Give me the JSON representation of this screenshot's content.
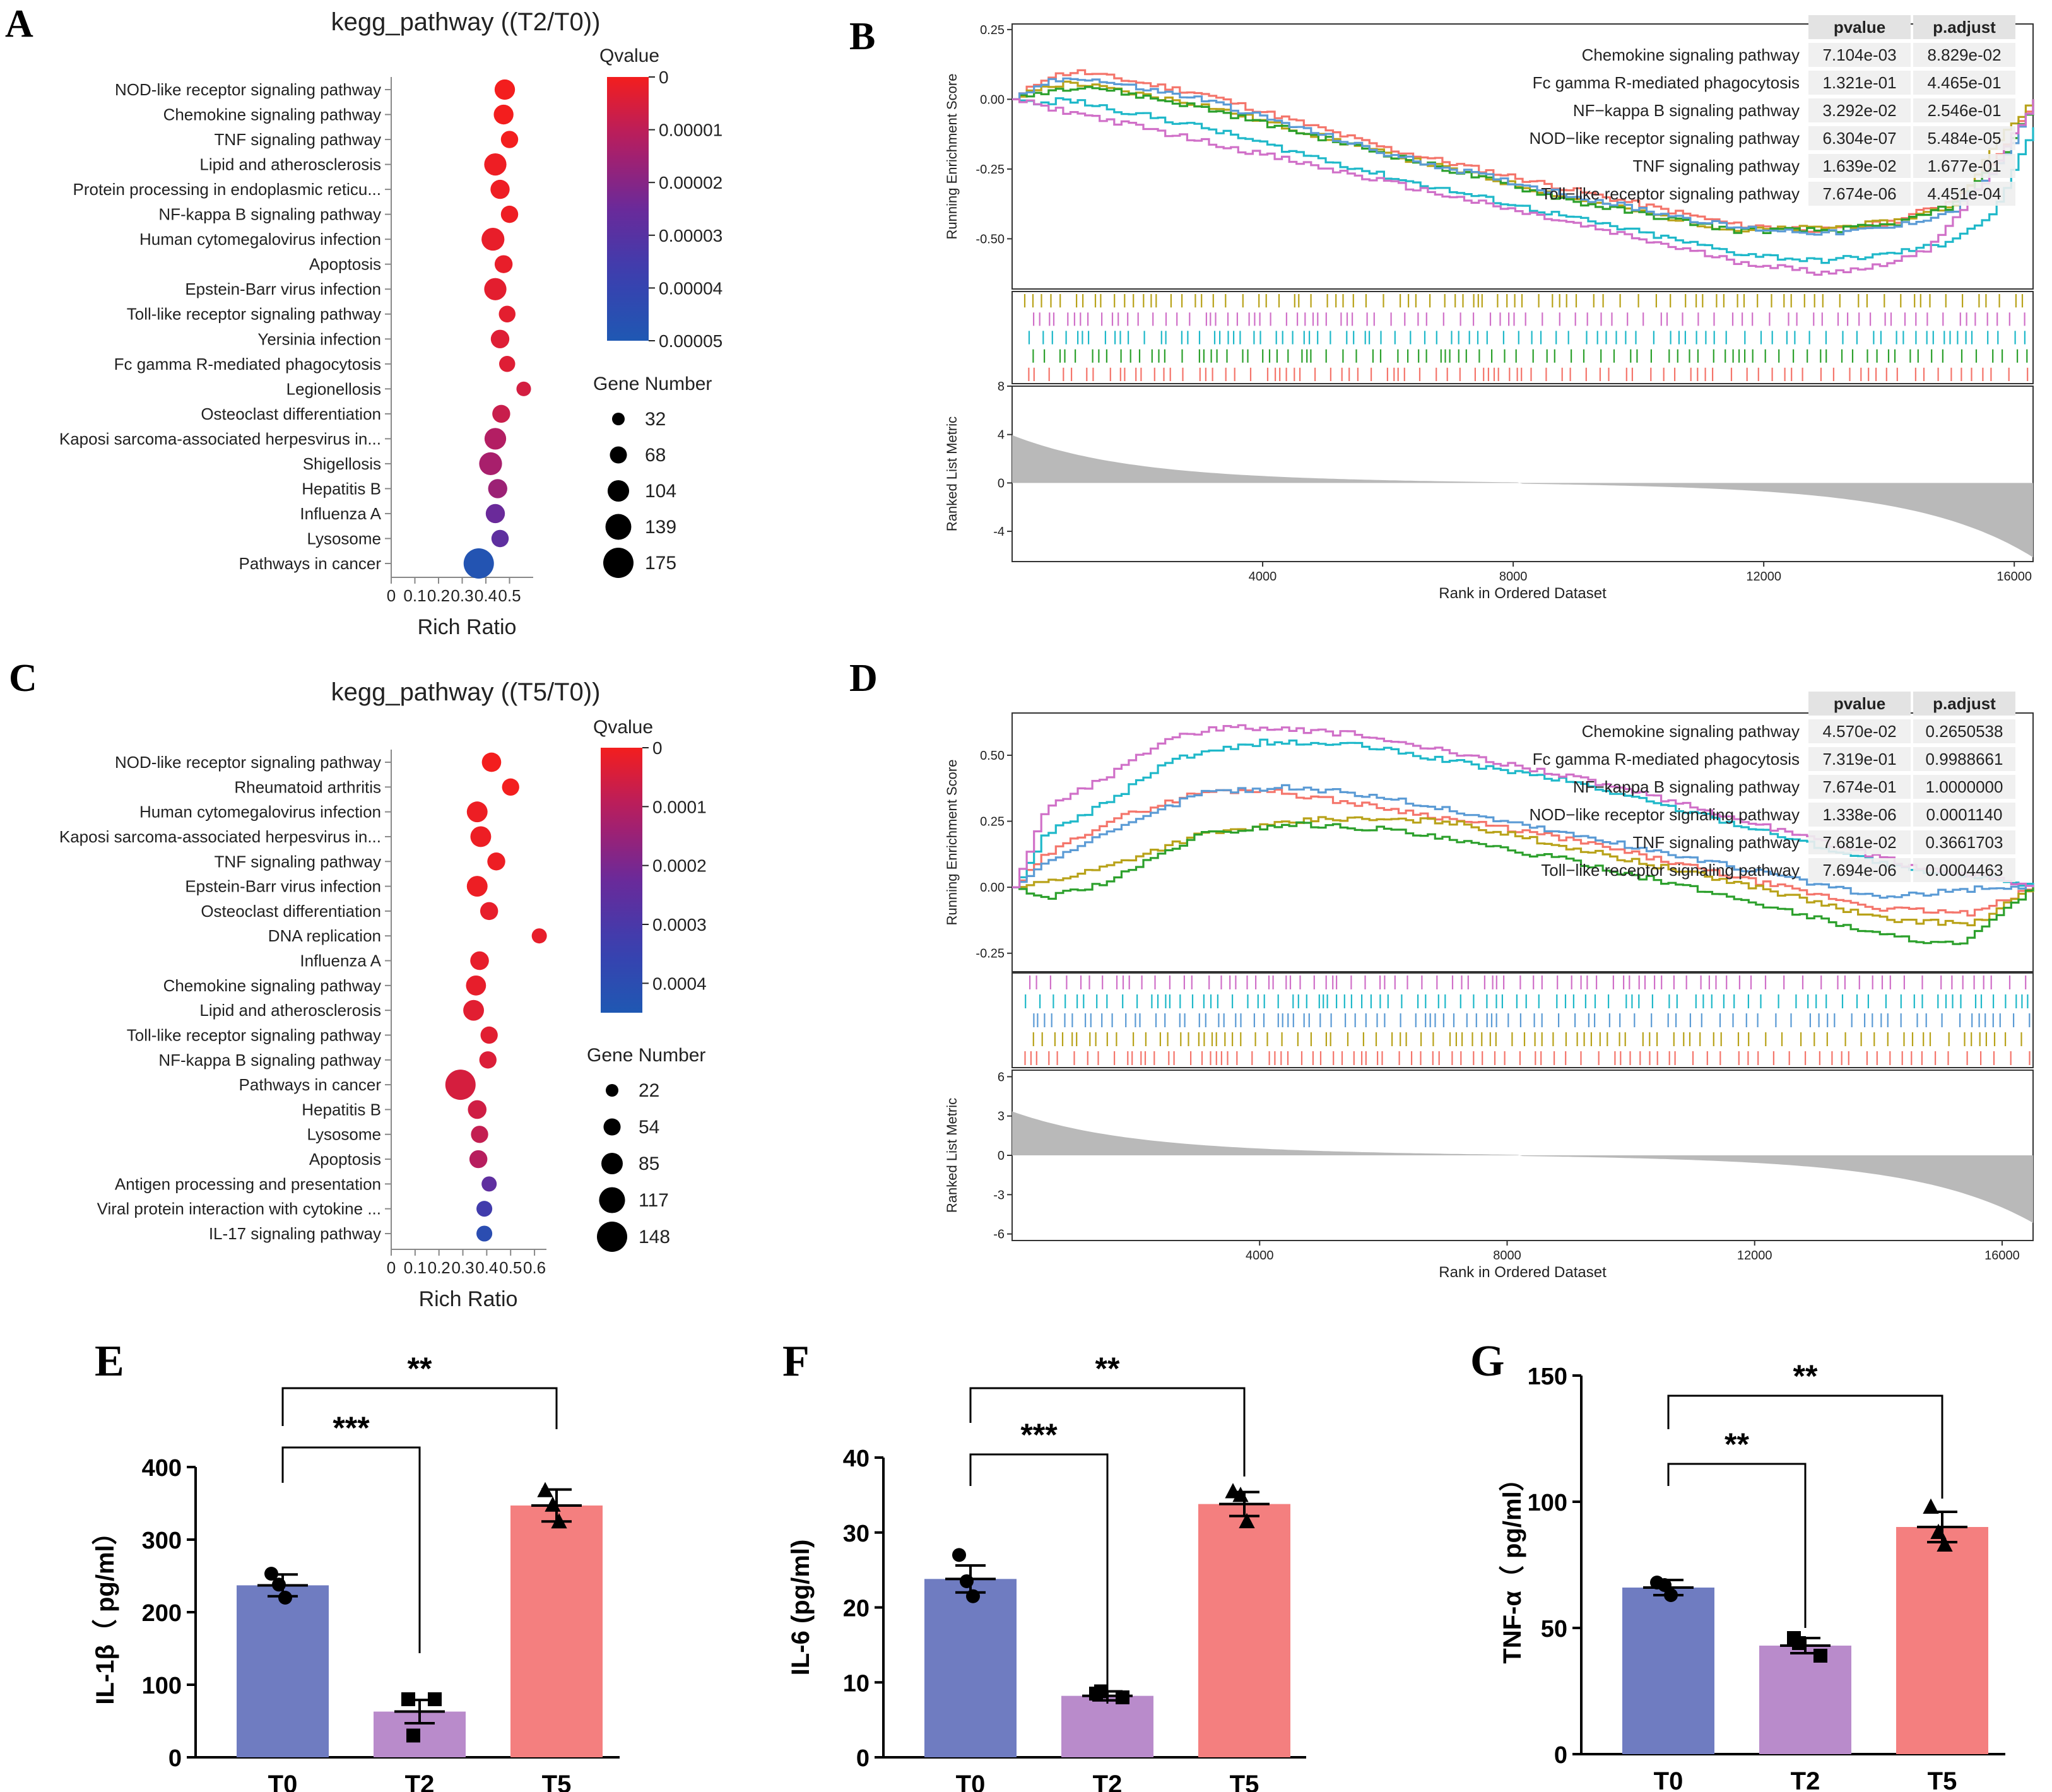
{
  "chart_data": [
    {
      "panel": "A",
      "type": "scatter",
      "title": "kegg_pathway ((T2/T0))",
      "xlabel": "Rich Ratio",
      "x_ticks": [
        "0",
        "0.1",
        "0.2",
        "0.3",
        "0.4",
        "0.5"
      ],
      "xlim": [
        0,
        0.6
      ],
      "legend_color_title": "Qvalue",
      "color_ticks": [
        "0",
        "0.00001",
        "0.00002",
        "0.00003",
        "0.00004",
        "0.00005"
      ],
      "color_max": 5e-05,
      "legend_size_title": "Gene Number",
      "size_levels": [
        "32",
        "68",
        "104",
        "139",
        "175"
      ],
      "points": [
        {
          "pathway": "NOD-like receptor signaling pathway",
          "rich_ratio": 0.48,
          "genes": 95,
          "qvalue": 0.0
        },
        {
          "pathway": "Chemokine signaling pathway",
          "rich_ratio": 0.475,
          "genes": 90,
          "qvalue": 0.0
        },
        {
          "pathway": "TNF signaling pathway",
          "rich_ratio": 0.5,
          "genes": 70,
          "qvalue": 0.0
        },
        {
          "pathway": "Lipid and atherosclerosis",
          "rich_ratio": 0.44,
          "genes": 110,
          "qvalue": 1e-06
        },
        {
          "pathway": "Protein processing in endoplasmic reticu...",
          "rich_ratio": 0.46,
          "genes": 85,
          "qvalue": 1e-06
        },
        {
          "pathway": "NF-kappa B signaling pathway",
          "rich_ratio": 0.5,
          "genes": 70,
          "qvalue": 1e-06
        },
        {
          "pathway": "Human cytomegalovirus infection",
          "rich_ratio": 0.43,
          "genes": 115,
          "qvalue": 2e-06
        },
        {
          "pathway": "Apoptosis",
          "rich_ratio": 0.475,
          "genes": 75,
          "qvalue": 2e-06
        },
        {
          "pathway": "Epstein-Barr virus infection",
          "rich_ratio": 0.44,
          "genes": 110,
          "qvalue": 3e-06
        },
        {
          "pathway": "Toll-like receptor signaling pathway",
          "rich_ratio": 0.49,
          "genes": 65,
          "qvalue": 3e-06
        },
        {
          "pathway": "Yersinia infection",
          "rich_ratio": 0.46,
          "genes": 80,
          "qvalue": 4e-06
        },
        {
          "pathway": "Fc gamma R-mediated phagocytosis",
          "rich_ratio": 0.49,
          "genes": 60,
          "qvalue": 4e-06
        },
        {
          "pathway": "Legionellosis",
          "rich_ratio": 0.56,
          "genes": 48,
          "qvalue": 6e-06
        },
        {
          "pathway": "Osteoclast differentiation",
          "rich_ratio": 0.465,
          "genes": 75,
          "qvalue": 8e-06
        },
        {
          "pathway": "Kaposi sarcoma-associated herpesvirus in...",
          "rich_ratio": 0.44,
          "genes": 105,
          "qvalue": 1.2e-05
        },
        {
          "pathway": "Shigellosis",
          "rich_ratio": 0.42,
          "genes": 115,
          "qvalue": 1.4e-05
        },
        {
          "pathway": "Hepatitis B",
          "rich_ratio": 0.45,
          "genes": 85,
          "qvalue": 1.6e-05
        },
        {
          "pathway": "Influenza A",
          "rich_ratio": 0.44,
          "genes": 85,
          "qvalue": 2.5e-05
        },
        {
          "pathway": "Lysosome",
          "rich_ratio": 0.46,
          "genes": 70,
          "qvalue": 2.8e-05
        },
        {
          "pathway": "Pathways in cancer",
          "rich_ratio": 0.37,
          "genes": 175,
          "qvalue": 4.8e-05
        }
      ]
    },
    {
      "panel": "B",
      "type": "line",
      "ylabel": "Running Enrichment Score",
      "y_ticks": [
        "0.25",
        "0.00",
        "-0.25",
        "-0.50"
      ],
      "ylim": [
        -0.68,
        0.27
      ],
      "ranked_ylabel": "Ranked List Metric",
      "ranked_ticks": [
        "8",
        "4",
        "0",
        "-4"
      ],
      "ranked_ylim": [
        -6.5,
        8
      ],
      "xlabel": "Rank in Ordered Dataset",
      "x_ticks": [
        "4000",
        "8000",
        "12000",
        "16000"
      ],
      "xlim": [
        0,
        16300
      ],
      "table_headers": [
        "pvalue",
        "p.adjust"
      ],
      "series": [
        {
          "name": "Chemokine signaling pathway",
          "color": "#f4756b",
          "pvalue": "7.104e-03",
          "padjust": "8.829e-02",
          "x": [
            0,
            500,
            1000,
            3000,
            6000,
            9000,
            11500,
            13000,
            14000,
            15000,
            15800,
            16300
          ],
          "y": [
            0.0,
            0.08,
            0.1,
            0.02,
            -0.18,
            -0.33,
            -0.45,
            -0.47,
            -0.44,
            -0.36,
            -0.18,
            0.0
          ]
        },
        {
          "name": "Fc gamma R-mediated phagocytosis",
          "color": "#b8a219",
          "pvalue": "1.321e-01",
          "padjust": "4.465e-01",
          "x": [
            0,
            400,
            900,
            3000,
            6000,
            9000,
            11500,
            13000,
            14000,
            15000,
            15800,
            16300
          ],
          "y": [
            0.0,
            0.04,
            0.06,
            -0.02,
            -0.2,
            -0.36,
            -0.47,
            -0.46,
            -0.44,
            -0.38,
            -0.12,
            0.0
          ]
        },
        {
          "name": "NF−kappa B signaling pathway",
          "color": "#2ca02c",
          "pvalue": "3.292e-02",
          "padjust": "2.546e-01",
          "x": [
            0,
            500,
            1100,
            3000,
            6000,
            9000,
            11500,
            13000,
            14000,
            15000,
            15800,
            16300
          ],
          "y": [
            0.0,
            0.03,
            0.05,
            -0.03,
            -0.2,
            -0.37,
            -0.47,
            -0.47,
            -0.45,
            -0.38,
            -0.2,
            0.0
          ]
        },
        {
          "name": "NOD−like receptor signaling pathway",
          "color": "#1fb8c9",
          "pvalue": "6.304e-07",
          "padjust": "5.484e-05",
          "x": [
            0,
            400,
            800,
            3000,
            6000,
            9000,
            11500,
            12800,
            13800,
            14800,
            15600,
            16300
          ],
          "y": [
            0.0,
            -0.02,
            0.0,
            -0.1,
            -0.28,
            -0.43,
            -0.55,
            -0.58,
            -0.56,
            -0.52,
            -0.42,
            -0.1
          ]
        },
        {
          "name": "TNF signaling pathway",
          "color": "#5b9bd5",
          "pvalue": "1.639e-02",
          "padjust": "1.677e-01",
          "x": [
            0,
            500,
            1000,
            3000,
            6000,
            9000,
            11500,
            13000,
            14000,
            15000,
            15800,
            16300
          ],
          "y": [
            0.0,
            0.06,
            0.08,
            0.0,
            -0.2,
            -0.35,
            -0.46,
            -0.48,
            -0.46,
            -0.4,
            -0.22,
            0.0
          ]
        },
        {
          "name": "Toll−like receptor signaling pathway",
          "color": "#d070c8",
          "pvalue": "7.674e-06",
          "padjust": "4.451e-04",
          "x": [
            0,
            500,
            1000,
            3000,
            6000,
            9000,
            11500,
            12800,
            13500,
            14500,
            15500,
            16300
          ],
          "y": [
            0.0,
            -0.03,
            -0.05,
            -0.15,
            -0.3,
            -0.45,
            -0.58,
            -0.62,
            -0.61,
            -0.55,
            -0.3,
            0.0
          ]
        }
      ]
    },
    {
      "panel": "C",
      "type": "scatter",
      "title": "kegg_pathway ((T5/T0))",
      "xlabel": "Rich Ratio",
      "x_ticks": [
        "0",
        "0.1",
        "0.2",
        "0.3",
        "0.4",
        "0.5",
        "0.6"
      ],
      "xlim": [
        0,
        0.65
      ],
      "legend_color_title": "Qvalue",
      "color_ticks": [
        "0",
        "0.0001",
        "0.0002",
        "0.0003",
        "0.0004"
      ],
      "color_max": 0.00045,
      "legend_size_title": "Gene Number",
      "size_levels": [
        "22",
        "54",
        "85",
        "117",
        "148"
      ],
      "points": [
        {
          "pathway": "NOD-like receptor signaling pathway",
          "rich_ratio": 0.42,
          "genes": 70,
          "qvalue": 0.0
        },
        {
          "pathway": "Rheumatoid arthritis",
          "rich_ratio": 0.5,
          "genes": 55,
          "qvalue": 0.0
        },
        {
          "pathway": "Human cytomegalovirus infection",
          "rich_ratio": 0.36,
          "genes": 80,
          "qvalue": 1e-05
        },
        {
          "pathway": "Kaposi sarcoma-associated herpesvirus in...",
          "rich_ratio": 0.375,
          "genes": 80,
          "qvalue": 1e-05
        },
        {
          "pathway": "TNF signaling pathway",
          "rich_ratio": 0.44,
          "genes": 60,
          "qvalue": 1e-05
        },
        {
          "pathway": "Epstein-Barr virus infection",
          "rich_ratio": 0.36,
          "genes": 80,
          "qvalue": 1e-05
        },
        {
          "pathway": "Osteoclast differentiation",
          "rich_ratio": 0.41,
          "genes": 60,
          "qvalue": 2e-05
        },
        {
          "pathway": "DNA replication",
          "rich_ratio": 0.62,
          "genes": 40,
          "qvalue": 2e-05
        },
        {
          "pathway": "Influenza A",
          "rich_ratio": 0.37,
          "genes": 65,
          "qvalue": 2e-05
        },
        {
          "pathway": "Chemokine signaling pathway",
          "rich_ratio": 0.355,
          "genes": 75,
          "qvalue": 2e-05
        },
        {
          "pathway": "Lipid and atherosclerosis",
          "rich_ratio": 0.345,
          "genes": 80,
          "qvalue": 3e-05
        },
        {
          "pathway": "Toll-like receptor signaling pathway",
          "rich_ratio": 0.41,
          "genes": 55,
          "qvalue": 3e-05
        },
        {
          "pathway": "NF-kappa B signaling pathway",
          "rich_ratio": 0.405,
          "genes": 55,
          "qvalue": 4e-05
        },
        {
          "pathway": "Pathways in cancer",
          "rich_ratio": 0.29,
          "genes": 148,
          "qvalue": 5e-05
        },
        {
          "pathway": "Hepatitis B",
          "rich_ratio": 0.36,
          "genes": 65,
          "qvalue": 6e-05
        },
        {
          "pathway": "Lysosome",
          "rich_ratio": 0.37,
          "genes": 55,
          "qvalue": 8e-05
        },
        {
          "pathway": "Apoptosis",
          "rich_ratio": 0.365,
          "genes": 60,
          "qvalue": 0.0001
        },
        {
          "pathway": "Antigen processing and presentation",
          "rich_ratio": 0.41,
          "genes": 40,
          "qvalue": 0.00025
        },
        {
          "pathway": "Viral protein interaction with cytokine ...",
          "rich_ratio": 0.39,
          "genes": 45,
          "qvalue": 0.00032
        },
        {
          "pathway": "IL-17 signaling pathway",
          "rich_ratio": 0.39,
          "genes": 45,
          "qvalue": 0.0004
        }
      ]
    },
    {
      "panel": "D",
      "type": "line",
      "ylabel": "Running Enrichment Score",
      "y_ticks": [
        "0.50",
        "0.25",
        "0.00",
        "-0.25"
      ],
      "ylim": [
        -0.32,
        0.66
      ],
      "ranked_ylabel": "Ranked List Metric",
      "ranked_ticks": [
        "6",
        "3",
        "0",
        "-3",
        "-6"
      ],
      "ranked_ylim": [
        -6.5,
        6.5
      ],
      "xlabel": "Rank in Ordered Dataset",
      "x_ticks": [
        "4000",
        "8000",
        "12000",
        "16000"
      ],
      "xlim": [
        0,
        16500
      ],
      "table_headers": [
        "pvalue",
        "p.adjust"
      ],
      "series": [
        {
          "name": "Chemokine signaling pathway",
          "color": "#f4756b",
          "pvalue": "4.570e-02",
          "padjust": "0.2650538",
          "x": [
            0,
            500,
            1500,
            3000,
            4000,
            6000,
            9000,
            12000,
            14000,
            15500,
            16500
          ],
          "y": [
            0.0,
            0.12,
            0.25,
            0.36,
            0.37,
            0.3,
            0.18,
            0.02,
            -0.08,
            -0.1,
            0.0
          ]
        },
        {
          "name": "Fc gamma R-mediated phagocytosis",
          "color": "#b8a219",
          "pvalue": "7.319e-01",
          "padjust": "0.9988661",
          "x": [
            0,
            500,
            1500,
            3000,
            5000,
            7000,
            10000,
            12000,
            14000,
            15500,
            16500
          ],
          "y": [
            0.0,
            0.02,
            0.08,
            0.2,
            0.26,
            0.25,
            0.1,
            0.0,
            -0.12,
            -0.14,
            0.0
          ]
        },
        {
          "name": "NF−kappa B signaling pathway",
          "color": "#2ca02c",
          "pvalue": "7.674e-01",
          "padjust": "1.0000000",
          "x": [
            0,
            500,
            1500,
            3000,
            4500,
            6000,
            9000,
            12000,
            14000,
            15300,
            16500
          ],
          "y": [
            0.0,
            -0.04,
            0.02,
            0.2,
            0.24,
            0.22,
            0.1,
            -0.06,
            -0.18,
            -0.22,
            0.0
          ]
        },
        {
          "name": "NOD−like receptor signaling pathway",
          "color": "#1fb8c9",
          "pvalue": "1.338e-06",
          "padjust": "0.0001140",
          "x": [
            0,
            500,
            1500,
            2500,
            4000,
            5500,
            9000,
            12000,
            14500,
            16000,
            16500
          ],
          "y": [
            0.0,
            0.2,
            0.32,
            0.48,
            0.55,
            0.54,
            0.4,
            0.22,
            0.06,
            0.03,
            0.0
          ]
        },
        {
          "name": "TNF signaling pathway",
          "color": "#5b9bd5",
          "pvalue": "7.681e-02",
          "padjust": "0.3661703",
          "x": [
            0,
            500,
            1500,
            3000,
            4500,
            6000,
            9000,
            12000,
            14000,
            15800,
            16500
          ],
          "y": [
            0.0,
            0.1,
            0.2,
            0.36,
            0.38,
            0.34,
            0.2,
            0.06,
            -0.04,
            0.0,
            0.0
          ]
        },
        {
          "name": "Toll−like receptor signaling pathway",
          "color": "#d070c8",
          "pvalue": "7.694e-06",
          "padjust": "0.0004463",
          "x": [
            0,
            500,
            1500,
            2500,
            3500,
            5500,
            9000,
            12000,
            14500,
            16000,
            16500
          ],
          "y": [
            0.0,
            0.3,
            0.42,
            0.57,
            0.61,
            0.58,
            0.42,
            0.24,
            0.08,
            0.03,
            0.0
          ]
        }
      ]
    },
    {
      "panel": "E",
      "type": "bar",
      "ylabel": "IL-1β（ pg/ml）",
      "categories": [
        "T0",
        "T2",
        "T5"
      ],
      "values": [
        237,
        63,
        347
      ],
      "errors": [
        15,
        16,
        22
      ],
      "points": [
        [
          253,
          220,
          238
        ],
        [
          80,
          80,
          30
        ],
        [
          368,
          325,
          348
        ]
      ],
      "y_ticks": [
        "0",
        "100",
        "200",
        "300",
        "400"
      ],
      "ylim": [
        0,
        400
      ],
      "colors": [
        "#6f7cc1",
        "#b98bcb",
        "#f47f7f"
      ],
      "markers": [
        "circle",
        "square",
        "triangle"
      ],
      "sig_pairs": [
        {
          "from": 0,
          "to": 2,
          "label": "**"
        },
        {
          "from": 0,
          "to": 1,
          "label": "***"
        }
      ]
    },
    {
      "panel": "F",
      "type": "bar",
      "ylabel": "IL-6 (pg/ml)",
      "categories": [
        "T0",
        "T2",
        "T5"
      ],
      "values": [
        23.8,
        8.2,
        33.8
      ],
      "errors": [
        1.8,
        0.6,
        1.6
      ],
      "points": [
        [
          27,
          21.5,
          23.5
        ],
        [
          8.5,
          8.0,
          8.8
        ],
        [
          35.5,
          31.5,
          35.0
        ]
      ],
      "y_ticks": [
        "0",
        "10",
        "20",
        "30",
        "40"
      ],
      "ylim": [
        0,
        40
      ],
      "colors": [
        "#6f7cc1",
        "#b98bcb",
        "#f47f7f"
      ],
      "markers": [
        "circle",
        "square",
        "triangle"
      ],
      "sig_pairs": [
        {
          "from": 0,
          "to": 2,
          "label": "**"
        },
        {
          "from": 0,
          "to": 1,
          "label": "***"
        }
      ]
    },
    {
      "panel": "G",
      "type": "bar",
      "ylabel": "TNF-α（ pg/ml）",
      "categories": [
        "T0",
        "T2",
        "T5"
      ],
      "values": [
        66,
        43,
        90
      ],
      "errors": [
        3,
        3,
        6
      ],
      "points": [
        [
          68,
          63,
          67
        ],
        [
          46,
          39,
          44
        ],
        [
          98,
          83,
          88
        ]
      ],
      "y_ticks": [
        "0",
        "50",
        "100",
        "150"
      ],
      "ylim": [
        0,
        150
      ],
      "colors": [
        "#6f7cc1",
        "#b98bcb",
        "#f47f7f"
      ],
      "markers": [
        "circle",
        "square",
        "triangle"
      ],
      "sig_pairs": [
        {
          "from": 0,
          "to": 2,
          "label": "**"
        },
        {
          "from": 0,
          "to": 1,
          "label": "**"
        }
      ]
    }
  ]
}
